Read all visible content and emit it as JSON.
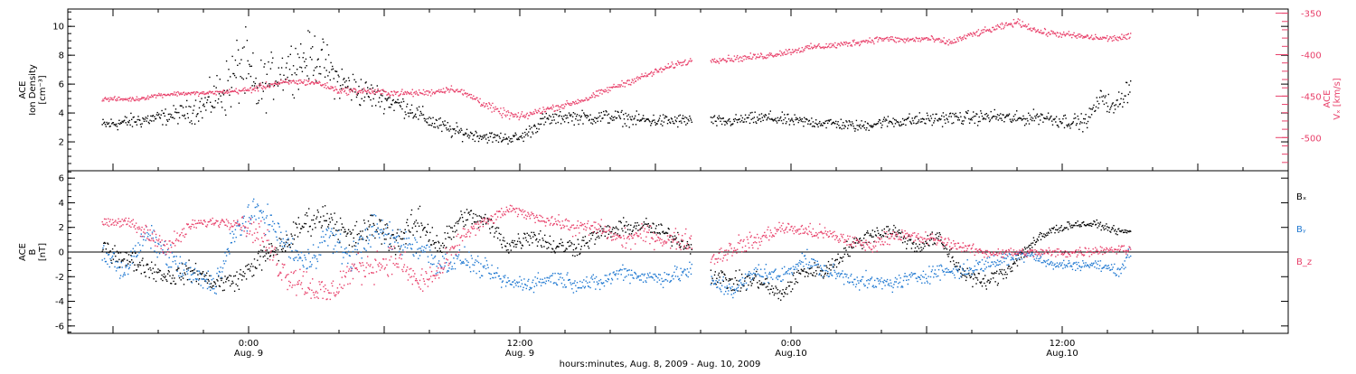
{
  "chart_data": [
    {
      "type": "scatter",
      "panel": "ion-density-speed",
      "ylabel_lines": [
        "ACE",
        "Ion Density",
        "[cm⁻³]"
      ],
      "ylim": [
        0,
        11.2
      ],
      "yticks": [
        2,
        4,
        6,
        8,
        10
      ],
      "y2label_lines": [
        "ACE",
        "Vₓ [km/s]"
      ],
      "y2lim": [
        -540,
        -345
      ],
      "y2ticks": [
        -500,
        -450,
        -400,
        -350
      ],
      "y2_color": "#e8406a",
      "series": [
        {
          "axis": "left",
          "color": "#000000",
          "x": [
            -6.5,
            -5,
            -4,
            -3,
            -2,
            -1,
            -0.3,
            0.3,
            1,
            2,
            3,
            4,
            5,
            6,
            7,
            8,
            9,
            10,
            11,
            12,
            13,
            14,
            15,
            16,
            17,
            18,
            19,
            20,
            21,
            22,
            23,
            24,
            25,
            26,
            27,
            28,
            29,
            30,
            31,
            32,
            33,
            34,
            35,
            36,
            37,
            37.8,
            38.2,
            39
          ],
          "y": [
            3.2,
            3.5,
            3.7,
            4.0,
            4.5,
            5.8,
            7.5,
            5.5,
            6.5,
            7.5,
            8.0,
            6.2,
            5.5,
            5.0,
            4.4,
            3.5,
            2.8,
            2.5,
            2.3,
            2.3,
            3.5,
            3.8,
            3.7,
            3.8,
            3.6,
            3.5,
            3.5,
            3.6,
            3.4,
            3.6,
            3.7,
            3.5,
            3.4,
            3.3,
            3.1,
            3.4,
            3.5,
            3.6,
            3.7,
            3.7,
            3.8,
            3.6,
            3.8,
            3.5,
            3.4,
            5.3,
            4.2,
            6.0
          ],
          "spread": [
            0.35,
            0.4,
            0.4,
            0.5,
            0.8,
            1.5,
            2.0,
            1.6,
            1.2,
            1.3,
            1.3,
            1.0,
            0.8,
            0.6,
            0.5,
            0.45,
            0.4,
            0.3,
            0.3,
            0.3,
            0.4,
            0.35,
            0.35,
            0.4,
            0.35,
            0.35,
            0.35,
            0.3,
            0.3,
            0.3,
            0.35,
            0.3,
            0.3,
            0.3,
            0.3,
            0.3,
            0.35,
            0.35,
            0.35,
            0.35,
            0.35,
            0.35,
            0.35,
            0.4,
            0.4,
            0.5,
            0.5,
            0.7
          ]
        },
        {
          "axis": "right",
          "color": "#e8406a",
          "x": [
            -6.5,
            -5,
            -4,
            -3,
            -2,
            -1,
            0,
            1,
            2,
            3,
            4,
            5,
            6,
            7,
            8,
            9,
            10,
            11,
            12,
            13,
            14,
            15,
            16,
            17,
            18,
            19,
            20,
            21,
            22,
            23,
            24,
            25,
            26,
            27,
            28,
            29,
            30,
            31,
            32,
            33,
            34,
            35,
            36,
            37,
            38,
            39
          ],
          "y": [
            -453,
            -453,
            -448,
            -446,
            -446,
            -444,
            -442,
            -435,
            -432,
            -433,
            -443,
            -443,
            -445,
            -446,
            -445,
            -440,
            -452,
            -468,
            -475,
            -466,
            -460,
            -452,
            -440,
            -430,
            -420,
            -410,
            -405,
            -405,
            -403,
            -400,
            -395,
            -390,
            -388,
            -384,
            -380,
            -382,
            -380,
            -385,
            -375,
            -368,
            -360,
            -372,
            -375,
            -378,
            -380,
            -378
          ],
          "spread": [
            2,
            2,
            2,
            2,
            2,
            2,
            3,
            3,
            3,
            3,
            3,
            3,
            3,
            3,
            3,
            3,
            4,
            4,
            4,
            3,
            3,
            3,
            3,
            3,
            3,
            3,
            3,
            3,
            3,
            3,
            3,
            3,
            3,
            3,
            3,
            3,
            3,
            3,
            3,
            3,
            3,
            3,
            3,
            3,
            3,
            3
          ]
        }
      ]
    },
    {
      "type": "scatter",
      "panel": "magnetic-field",
      "ylabel_lines": [
        "ACE",
        "B",
        "[nT]"
      ],
      "ylim": [
        -6.6,
        6.6
      ],
      "yticks": [
        -6,
        -4,
        -2,
        0,
        2,
        4,
        6
      ],
      "zero_line": true,
      "series": [
        {
          "name": "Bₓ",
          "color": "#000000",
          "x": [
            -6.5,
            -5.5,
            -4.5,
            -3.5,
            -2.5,
            -1.5,
            -0.5,
            0.5,
            1.5,
            2.5,
            3.5,
            4.5,
            5.5,
            6.5,
            7.5,
            8.5,
            9.5,
            10.5,
            11.5,
            12.5,
            13.5,
            14.5,
            15.5,
            16.5,
            17.5,
            18.5,
            19.5,
            20.5,
            21.5,
            22.5,
            23.5,
            24.5,
            25.5,
            26.5,
            27.5,
            28.5,
            29.5,
            30.5,
            31.5,
            32.5,
            33.5,
            34.5,
            35.5,
            36.5,
            37.5,
            38.5,
            39
          ],
          "y": [
            0.5,
            -0.5,
            -1.2,
            -2,
            -1.5,
            -2.5,
            -2.2,
            -0.5,
            0.5,
            2.5,
            3,
            1,
            2.2,
            1,
            2.5,
            0.5,
            3,
            2.5,
            0.5,
            1.5,
            0.5,
            0.5,
            1.5,
            2,
            2.2,
            1.5,
            0.5,
            -1.8,
            -2.5,
            -2.2,
            -3.5,
            -1.5,
            -1.5,
            0.3,
            1.5,
            1.8,
            0.5,
            1.2,
            -1.5,
            -2.5,
            -1.5,
            0.5,
            1.8,
            2.3,
            2.3,
            1.7,
            1.7
          ],
          "spread": [
            0.6,
            0.6,
            0.6,
            0.6,
            0.6,
            0.6,
            0.6,
            0.7,
            0.8,
            0.8,
            0.8,
            0.9,
            0.9,
            0.9,
            0.9,
            0.9,
            0.6,
            0.6,
            0.6,
            0.6,
            0.6,
            0.6,
            0.5,
            0.5,
            0.5,
            0.5,
            0.5,
            0.6,
            0.6,
            0.6,
            0.5,
            0.5,
            0.5,
            0.5,
            0.5,
            0.5,
            0.5,
            0.5,
            0.5,
            0.5,
            0.5,
            0.5,
            0.3,
            0.2,
            0.2,
            0.2,
            0.2
          ]
        },
        {
          "name": "Bᵧ",
          "color": "#1f78d1",
          "x": [
            -6.5,
            -5.5,
            -4.5,
            -3.5,
            -2.5,
            -1.5,
            -0.5,
            0.5,
            1.5,
            2.5,
            3.5,
            4.5,
            5.5,
            6.5,
            7.5,
            8.5,
            9.5,
            10.5,
            11.5,
            12.5,
            13.5,
            14.5,
            15.5,
            16.5,
            17.5,
            18.5,
            19.5,
            20.5,
            21.5,
            22.5,
            23.5,
            24.5,
            25.5,
            26.5,
            27.5,
            28.5,
            29.5,
            30.5,
            31.5,
            32.5,
            33.5,
            34.5,
            35.5,
            36.5,
            37.5,
            38.5,
            39
          ],
          "y": [
            0,
            -1.5,
            1.5,
            -0.5,
            -2,
            -2.5,
            2,
            3.5,
            1,
            -1,
            1.5,
            -0.5,
            2,
            1,
            0.5,
            -1,
            -0.5,
            -1.5,
            -2.5,
            -2.5,
            -2,
            -2.5,
            -2.5,
            -1.5,
            -2,
            -2,
            -1.5,
            -2.5,
            -3,
            -1.5,
            -2,
            -0.5,
            -1.5,
            -2,
            -2.5,
            -2.5,
            -2,
            -1.5,
            -1.5,
            -1,
            -0.5,
            0,
            -1,
            -1,
            -1,
            -1.5,
            0
          ],
          "spread": [
            0.7,
            0.7,
            0.7,
            0.8,
            0.7,
            0.7,
            0.9,
            0.8,
            0.9,
            0.9,
            0.9,
            0.9,
            0.9,
            0.9,
            0.9,
            0.8,
            0.6,
            0.6,
            0.5,
            0.5,
            0.5,
            0.5,
            0.5,
            0.5,
            0.5,
            0.5,
            0.6,
            0.6,
            0.6,
            0.6,
            0.5,
            0.5,
            0.5,
            0.5,
            0.5,
            0.5,
            0.5,
            0.5,
            0.5,
            0.5,
            0.4,
            0.4,
            0.3,
            0.3,
            0.3,
            0.3,
            0.4
          ]
        },
        {
          "name": "B_z",
          "color": "#e8406a",
          "x": [
            -6.5,
            -5.5,
            -4.5,
            -3.5,
            -2.5,
            -1.5,
            -0.5,
            0.5,
            1.5,
            2.5,
            3.5,
            4.5,
            5.5,
            6.5,
            7.5,
            8.5,
            9.5,
            10.5,
            11.5,
            12.5,
            13.5,
            14.5,
            15.5,
            16.5,
            17.5,
            18.5,
            19.5,
            20.5,
            21.5,
            22.5,
            23.5,
            24.5,
            25.5,
            26.5,
            27.5,
            28.5,
            29.5,
            30.5,
            31.5,
            32.5,
            33.5,
            34.5,
            35.5,
            36.5,
            37.5,
            38.5,
            39
          ],
          "y": [
            2.5,
            2.5,
            1.5,
            0.5,
            2.3,
            2.5,
            2.5,
            1.5,
            -1.5,
            -2.5,
            -3.5,
            -1.5,
            -1,
            -0.5,
            -2.5,
            -1.5,
            1.5,
            2.5,
            3.5,
            3,
            2.5,
            2,
            2,
            1,
            1.5,
            1,
            1,
            -0.5,
            0.5,
            1,
            2,
            1.8,
            1.5,
            1,
            0.5,
            1.5,
            1.2,
            1,
            0.5,
            0,
            0,
            0,
            0,
            0,
            0.2,
            0.3,
            0.2
          ],
          "spread": [
            0.3,
            0.3,
            0.6,
            0.7,
            0.3,
            0.3,
            0.4,
            0.9,
            1.0,
            1.0,
            0.9,
            0.9,
            0.9,
            0.9,
            0.8,
            0.8,
            0.5,
            0.4,
            0.3,
            0.3,
            0.4,
            0.5,
            0.5,
            0.6,
            0.6,
            0.6,
            0.6,
            0.7,
            0.6,
            0.6,
            0.4,
            0.4,
            0.5,
            0.4,
            0.4,
            0.4,
            0.4,
            0.4,
            0.3,
            0.3,
            0.3,
            0.3,
            0.3,
            0.3,
            0.3,
            0.3,
            0.3
          ]
        }
      ]
    }
  ],
  "x_axis": {
    "range_hours": [
      -8,
      46
    ],
    "ticks": [
      {
        "hour": 0,
        "labels": [
          "0:00",
          "Aug. 9"
        ]
      },
      {
        "hour": 12,
        "labels": [
          "12:00",
          "Aug. 9"
        ]
      },
      {
        "hour": 24,
        "labels": [
          "0:00",
          "Aug.10"
        ]
      },
      {
        "hour": 36,
        "labels": [
          "12:00",
          "Aug.10"
        ]
      }
    ],
    "title": "hours:minutes, Aug.  8, 2009 - Aug. 10, 2009"
  },
  "data_gap_hours": [
    19.6,
    20.4
  ]
}
